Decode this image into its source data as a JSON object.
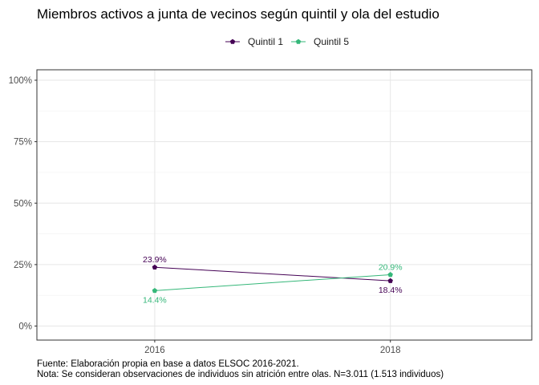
{
  "chart_data": {
    "type": "line",
    "title": "Miembros activos a junta de vecinos según quintil y ola del estudio",
    "xlabel": "",
    "ylabel": "",
    "x": [
      "2016",
      "2018"
    ],
    "xlim": [
      2015,
      2019.2
    ],
    "ylim": [
      0,
      1
    ],
    "yticks": [
      0,
      0.25,
      0.5,
      0.75,
      1
    ],
    "ytick_labels": [
      "0%",
      "25%",
      "50%",
      "75%",
      "100%"
    ],
    "grid": true,
    "legend_position": "top",
    "series": [
      {
        "name": "Quintil 1",
        "color": "#440154",
        "values": [
          0.239,
          0.184
        ],
        "labels": [
          "23.9%",
          "18.4%"
        ]
      },
      {
        "name": "Quintil 5",
        "color": "#35b779",
        "values": [
          0.144,
          0.209
        ],
        "labels": [
          "14.4%",
          "20.9%"
        ]
      }
    ]
  },
  "caption": {
    "source": "Fuente: Elaboración propia en base a datos ELSOC 2016-2021.",
    "note": "Nota: Se consideran observaciones de individuos sin atrición entre olas. N=3.011 (1.513 individuos)"
  }
}
